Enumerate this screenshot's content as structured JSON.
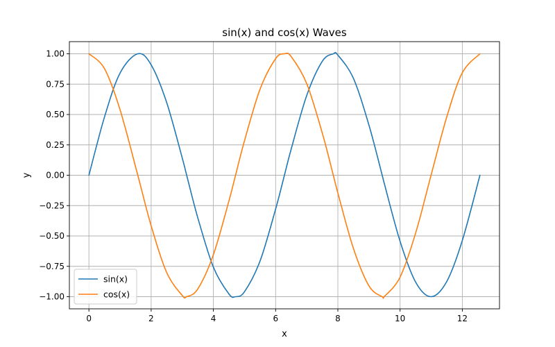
{
  "chart_data": {
    "type": "line",
    "title": "sin(x) and cos(x) Waves",
    "xlabel": "x",
    "ylabel": "y",
    "xlim": [
      -0.628,
      13.195
    ],
    "ylim": [
      -1.1,
      1.1
    ],
    "xticks": [
      0,
      2,
      4,
      6,
      8,
      10,
      12
    ],
    "xtick_labels": [
      "0",
      "2",
      "4",
      "6",
      "8",
      "10",
      "12"
    ],
    "yticks": [
      -1.0,
      -0.75,
      -0.5,
      -0.25,
      0.0,
      0.25,
      0.5,
      0.75,
      1.0
    ],
    "ytick_labels": [
      "−1.00",
      "−0.75",
      "−0.50",
      "−0.25",
      "0.00",
      "0.25",
      "0.50",
      "0.75",
      "1.00"
    ],
    "grid": true,
    "legend_position": "lower-left",
    "series": [
      {
        "name": "sin(x)",
        "color": "#1f77b4",
        "x": [
          0,
          0.5,
          1.0,
          1.5708,
          2.0,
          2.5,
          3.0,
          3.1416,
          3.5,
          4.0,
          4.5,
          4.7124,
          5.0,
          5.5,
          6.0,
          6.2832,
          6.5,
          7.0,
          7.5,
          7.854,
          8.0,
          8.5,
          9.0,
          9.4248,
          9.5,
          10.0,
          10.5,
          10.9956,
          11.5,
          12.0,
          12.5664
        ],
        "y": [
          0.0,
          0.479,
          0.841,
          1.0,
          0.909,
          0.598,
          0.141,
          0.0,
          -0.351,
          -0.757,
          -0.978,
          -1.0,
          -0.959,
          -0.706,
          -0.279,
          0.0,
          0.215,
          0.657,
          0.938,
          1.0,
          0.989,
          0.798,
          0.412,
          0.0,
          -0.075,
          -0.544,
          -0.88,
          -1.0,
          -0.875,
          -0.537,
          0.0
        ]
      },
      {
        "name": "cos(x)",
        "color": "#ff7f0e",
        "x": [
          0,
          0.5,
          1.0,
          1.5708,
          2.0,
          2.5,
          3.0,
          3.1416,
          3.5,
          4.0,
          4.5,
          4.7124,
          5.0,
          5.5,
          6.0,
          6.2832,
          6.5,
          7.0,
          7.5,
          7.854,
          8.0,
          8.5,
          9.0,
          9.4248,
          9.5,
          10.0,
          10.5,
          10.9956,
          11.5,
          12.0,
          12.5664
        ],
        "y": [
          1.0,
          0.878,
          0.54,
          0.0,
          -0.416,
          -0.801,
          -0.99,
          -1.0,
          -0.936,
          -0.654,
          -0.211,
          0.0,
          0.284,
          0.709,
          0.96,
          1.0,
          0.977,
          0.754,
          0.347,
          0.0,
          -0.146,
          -0.602,
          -0.911,
          -1.0,
          -0.997,
          -0.839,
          -0.476,
          0.0,
          0.48,
          0.844,
          1.0
        ]
      }
    ]
  }
}
